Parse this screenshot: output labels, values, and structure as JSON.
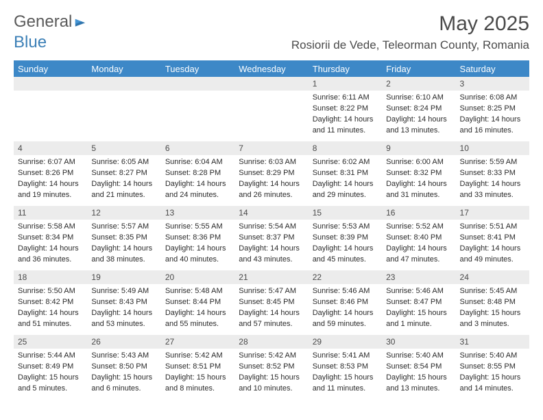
{
  "brand": {
    "part1": "General",
    "part2": "Blue"
  },
  "title": "May 2025",
  "location": "Rosiorii de Vede, Teleorman County, Romania",
  "header_bg": "#3d88c7",
  "daynum_bg": "#ececec",
  "weekdays": [
    "Sunday",
    "Monday",
    "Tuesday",
    "Wednesday",
    "Thursday",
    "Friday",
    "Saturday"
  ],
  "weeks": [
    [
      null,
      null,
      null,
      null,
      {
        "n": "1",
        "sr": "Sunrise: 6:11 AM",
        "ss": "Sunset: 8:22 PM",
        "d1": "Daylight: 14 hours",
        "d2": "and 11 minutes."
      },
      {
        "n": "2",
        "sr": "Sunrise: 6:10 AM",
        "ss": "Sunset: 8:24 PM",
        "d1": "Daylight: 14 hours",
        "d2": "and 13 minutes."
      },
      {
        "n": "3",
        "sr": "Sunrise: 6:08 AM",
        "ss": "Sunset: 8:25 PM",
        "d1": "Daylight: 14 hours",
        "d2": "and 16 minutes."
      }
    ],
    [
      {
        "n": "4",
        "sr": "Sunrise: 6:07 AM",
        "ss": "Sunset: 8:26 PM",
        "d1": "Daylight: 14 hours",
        "d2": "and 19 minutes."
      },
      {
        "n": "5",
        "sr": "Sunrise: 6:05 AM",
        "ss": "Sunset: 8:27 PM",
        "d1": "Daylight: 14 hours",
        "d2": "and 21 minutes."
      },
      {
        "n": "6",
        "sr": "Sunrise: 6:04 AM",
        "ss": "Sunset: 8:28 PM",
        "d1": "Daylight: 14 hours",
        "d2": "and 24 minutes."
      },
      {
        "n": "7",
        "sr": "Sunrise: 6:03 AM",
        "ss": "Sunset: 8:29 PM",
        "d1": "Daylight: 14 hours",
        "d2": "and 26 minutes."
      },
      {
        "n": "8",
        "sr": "Sunrise: 6:02 AM",
        "ss": "Sunset: 8:31 PM",
        "d1": "Daylight: 14 hours",
        "d2": "and 29 minutes."
      },
      {
        "n": "9",
        "sr": "Sunrise: 6:00 AM",
        "ss": "Sunset: 8:32 PM",
        "d1": "Daylight: 14 hours",
        "d2": "and 31 minutes."
      },
      {
        "n": "10",
        "sr": "Sunrise: 5:59 AM",
        "ss": "Sunset: 8:33 PM",
        "d1": "Daylight: 14 hours",
        "d2": "and 33 minutes."
      }
    ],
    [
      {
        "n": "11",
        "sr": "Sunrise: 5:58 AM",
        "ss": "Sunset: 8:34 PM",
        "d1": "Daylight: 14 hours",
        "d2": "and 36 minutes."
      },
      {
        "n": "12",
        "sr": "Sunrise: 5:57 AM",
        "ss": "Sunset: 8:35 PM",
        "d1": "Daylight: 14 hours",
        "d2": "and 38 minutes."
      },
      {
        "n": "13",
        "sr": "Sunrise: 5:55 AM",
        "ss": "Sunset: 8:36 PM",
        "d1": "Daylight: 14 hours",
        "d2": "and 40 minutes."
      },
      {
        "n": "14",
        "sr": "Sunrise: 5:54 AM",
        "ss": "Sunset: 8:37 PM",
        "d1": "Daylight: 14 hours",
        "d2": "and 43 minutes."
      },
      {
        "n": "15",
        "sr": "Sunrise: 5:53 AM",
        "ss": "Sunset: 8:39 PM",
        "d1": "Daylight: 14 hours",
        "d2": "and 45 minutes."
      },
      {
        "n": "16",
        "sr": "Sunrise: 5:52 AM",
        "ss": "Sunset: 8:40 PM",
        "d1": "Daylight: 14 hours",
        "d2": "and 47 minutes."
      },
      {
        "n": "17",
        "sr": "Sunrise: 5:51 AM",
        "ss": "Sunset: 8:41 PM",
        "d1": "Daylight: 14 hours",
        "d2": "and 49 minutes."
      }
    ],
    [
      {
        "n": "18",
        "sr": "Sunrise: 5:50 AM",
        "ss": "Sunset: 8:42 PM",
        "d1": "Daylight: 14 hours",
        "d2": "and 51 minutes."
      },
      {
        "n": "19",
        "sr": "Sunrise: 5:49 AM",
        "ss": "Sunset: 8:43 PM",
        "d1": "Daylight: 14 hours",
        "d2": "and 53 minutes."
      },
      {
        "n": "20",
        "sr": "Sunrise: 5:48 AM",
        "ss": "Sunset: 8:44 PM",
        "d1": "Daylight: 14 hours",
        "d2": "and 55 minutes."
      },
      {
        "n": "21",
        "sr": "Sunrise: 5:47 AM",
        "ss": "Sunset: 8:45 PM",
        "d1": "Daylight: 14 hours",
        "d2": "and 57 minutes."
      },
      {
        "n": "22",
        "sr": "Sunrise: 5:46 AM",
        "ss": "Sunset: 8:46 PM",
        "d1": "Daylight: 14 hours",
        "d2": "and 59 minutes."
      },
      {
        "n": "23",
        "sr": "Sunrise: 5:46 AM",
        "ss": "Sunset: 8:47 PM",
        "d1": "Daylight: 15 hours",
        "d2": "and 1 minute."
      },
      {
        "n": "24",
        "sr": "Sunrise: 5:45 AM",
        "ss": "Sunset: 8:48 PM",
        "d1": "Daylight: 15 hours",
        "d2": "and 3 minutes."
      }
    ],
    [
      {
        "n": "25",
        "sr": "Sunrise: 5:44 AM",
        "ss": "Sunset: 8:49 PM",
        "d1": "Daylight: 15 hours",
        "d2": "and 5 minutes."
      },
      {
        "n": "26",
        "sr": "Sunrise: 5:43 AM",
        "ss": "Sunset: 8:50 PM",
        "d1": "Daylight: 15 hours",
        "d2": "and 6 minutes."
      },
      {
        "n": "27",
        "sr": "Sunrise: 5:42 AM",
        "ss": "Sunset: 8:51 PM",
        "d1": "Daylight: 15 hours",
        "d2": "and 8 minutes."
      },
      {
        "n": "28",
        "sr": "Sunrise: 5:42 AM",
        "ss": "Sunset: 8:52 PM",
        "d1": "Daylight: 15 hours",
        "d2": "and 10 minutes."
      },
      {
        "n": "29",
        "sr": "Sunrise: 5:41 AM",
        "ss": "Sunset: 8:53 PM",
        "d1": "Daylight: 15 hours",
        "d2": "and 11 minutes."
      },
      {
        "n": "30",
        "sr": "Sunrise: 5:40 AM",
        "ss": "Sunset: 8:54 PM",
        "d1": "Daylight: 15 hours",
        "d2": "and 13 minutes."
      },
      {
        "n": "31",
        "sr": "Sunrise: 5:40 AM",
        "ss": "Sunset: 8:55 PM",
        "d1": "Daylight: 15 hours",
        "d2": "and 14 minutes."
      }
    ]
  ]
}
